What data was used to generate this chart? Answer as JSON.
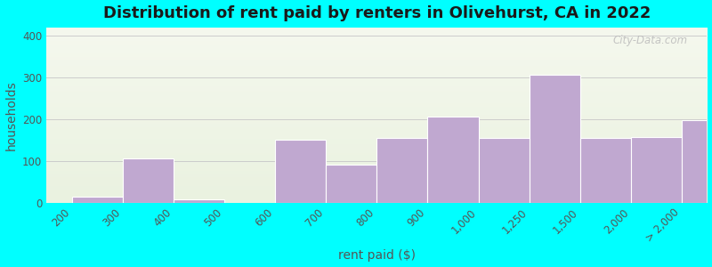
{
  "title": "Distribution of rent paid by renters in Olivehurst, CA in 2022",
  "xlabel": "rent paid ($)",
  "ylabel": "households",
  "tick_labels": [
    "200",
    "300",
    "400",
    "500",
    "600",
    "700",
    "800",
    "900",
    "1,000",
    "1,250",
    "1,500",
    "2,000",
    "> 2,000"
  ],
  "bar_values": [
    15,
    105,
    8,
    0,
    150,
    90,
    155,
    205,
    155,
    307,
    155,
    158,
    197
  ],
  "bar_color": "#c0a8d0",
  "bar_edge_color": "#ffffff",
  "background_color": "#00ffff",
  "plot_bg_top_color": "#f5f8ee",
  "plot_bg_bottom_color": "#eaf2e0",
  "yticks": [
    0,
    100,
    200,
    300,
    400
  ],
  "ylim": [
    0,
    420
  ],
  "title_fontsize": 13,
  "axis_label_fontsize": 10,
  "tick_fontsize": 8.5,
  "watermark": "City-Data.com"
}
